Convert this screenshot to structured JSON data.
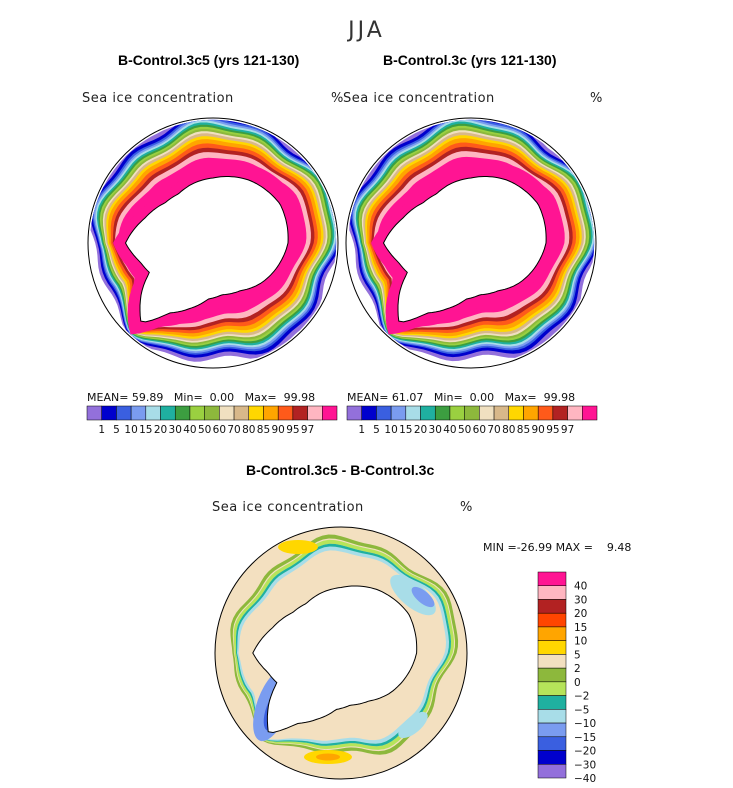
{
  "season": "JJA",
  "panels": [
    {
      "title": "B-Control.3c5 (yrs 121-130)",
      "field": "Sea ice concentration",
      "unit": "%",
      "mean_label": "MEAN=",
      "mean": "59.89",
      "min_label": "Min=",
      "min": "0.00",
      "max_label": "Max=",
      "max": "99.98"
    },
    {
      "title": "B-Control.3c (yrs 121-130)",
      "field": "Sea ice concentration",
      "unit": "%",
      "mean_label": "MEAN=",
      "mean": "61.07",
      "min_label": "Min=",
      "min": "0.00",
      "max_label": "Max=",
      "max": "99.98"
    }
  ],
  "diff": {
    "title": "B-Control.3c5 - B-Control.3c",
    "field": "Sea ice concentration",
    "unit": "%",
    "min_label": "MIN =",
    "min": "-26.99",
    "max_label": "MAX =",
    "max": "9.48"
  },
  "chart_data": [
    {
      "type": "heatmap",
      "title": "B-Control.3c5 (yrs 121-130)",
      "variable": "Sea ice concentration",
      "unit": "%",
      "mean": 59.89,
      "min": 0.0,
      "max": 99.98,
      "levels": [
        1,
        5,
        10,
        15,
        20,
        30,
        40,
        50,
        60,
        70,
        80,
        85,
        90,
        95,
        97
      ],
      "colors": [
        "#9370DB",
        "#0000CD",
        "#3A5FE0",
        "#7A9CF0",
        "#A8DDE8",
        "#1FB0A0",
        "#3C9E40",
        "#9AD040",
        "#8DB83C",
        "#F0E0C0",
        "#D8B88A",
        "#FFD700",
        "#FFA500",
        "#FF5A1A",
        "#B22222",
        "#FFB6C1",
        "#FF1493"
      ]
    },
    {
      "type": "heatmap",
      "title": "B-Control.3c (yrs 121-130)",
      "variable": "Sea ice concentration",
      "unit": "%",
      "mean": 61.07,
      "min": 0.0,
      "max": 99.98,
      "levels": [
        1,
        5,
        10,
        15,
        20,
        30,
        40,
        50,
        60,
        70,
        80,
        85,
        90,
        95,
        97
      ],
      "colors": [
        "#9370DB",
        "#0000CD",
        "#3A5FE0",
        "#7A9CF0",
        "#A8DDE8",
        "#1FB0A0",
        "#3C9E40",
        "#9AD040",
        "#8DB83C",
        "#F0E0C0",
        "#D8B88A",
        "#FFD700",
        "#FFA500",
        "#FF5A1A",
        "#B22222",
        "#FFB6C1",
        "#FF1493"
      ]
    },
    {
      "type": "heatmap",
      "title": "B-Control.3c5 - B-Control.3c",
      "variable": "Sea ice concentration",
      "unit": "%",
      "min": -26.99,
      "max": 9.48,
      "levels": [
        40,
        30,
        20,
        15,
        10,
        5,
        2,
        0,
        -2,
        -5,
        -10,
        -15,
        -20,
        -30,
        -40
      ],
      "colors": [
        "#FF1493",
        "#FFB6C1",
        "#B22222",
        "#FF4500",
        "#FFA500",
        "#FFD700",
        "#F3E0C0",
        "#8DB83C",
        "#B6E45A",
        "#1FB0A0",
        "#A8DDE8",
        "#7A9CF0",
        "#3A5FE0",
        "#0000CD",
        "#9370DB"
      ]
    }
  ]
}
